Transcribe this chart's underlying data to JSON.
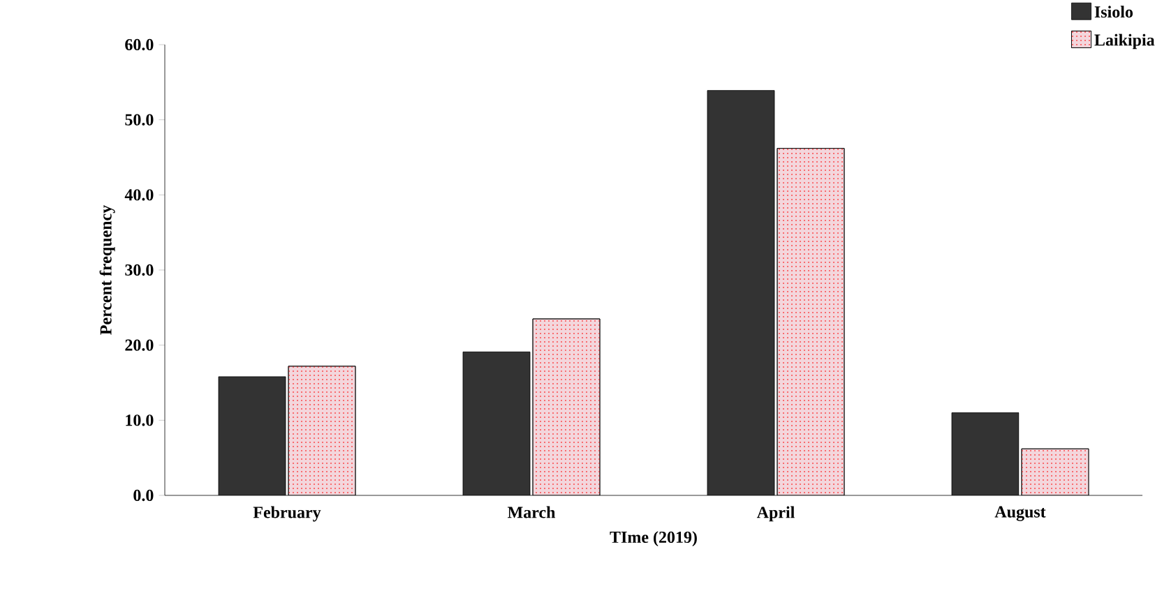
{
  "chart_data": {
    "type": "bar",
    "xlabel": "TIme (2019)",
    "ylabel": "Percent frequency",
    "categories": [
      "February",
      "March",
      "April",
      "August"
    ],
    "series": [
      {
        "name": "Isiolo",
        "color": "#333333",
        "values": [
          15.8,
          19.1,
          53.9,
          11.0
        ]
      },
      {
        "name": "Laikipia",
        "color": "#f3d6dc",
        "values": [
          17.2,
          23.5,
          46.2,
          6.2
        ]
      }
    ],
    "ylim": [
      0,
      60
    ],
    "yticks": [
      {
        "value": 0,
        "label": "0.0"
      },
      {
        "value": 10,
        "label": "10.0"
      },
      {
        "value": 20,
        "label": "20.0"
      },
      {
        "value": 30,
        "label": "30.0"
      },
      {
        "value": 40,
        "label": "40.0"
      },
      {
        "value": 50,
        "label": "50.0"
      },
      {
        "value": 60,
        "label": "60.0"
      }
    ],
    "legend": "top right",
    "grid": false
  }
}
